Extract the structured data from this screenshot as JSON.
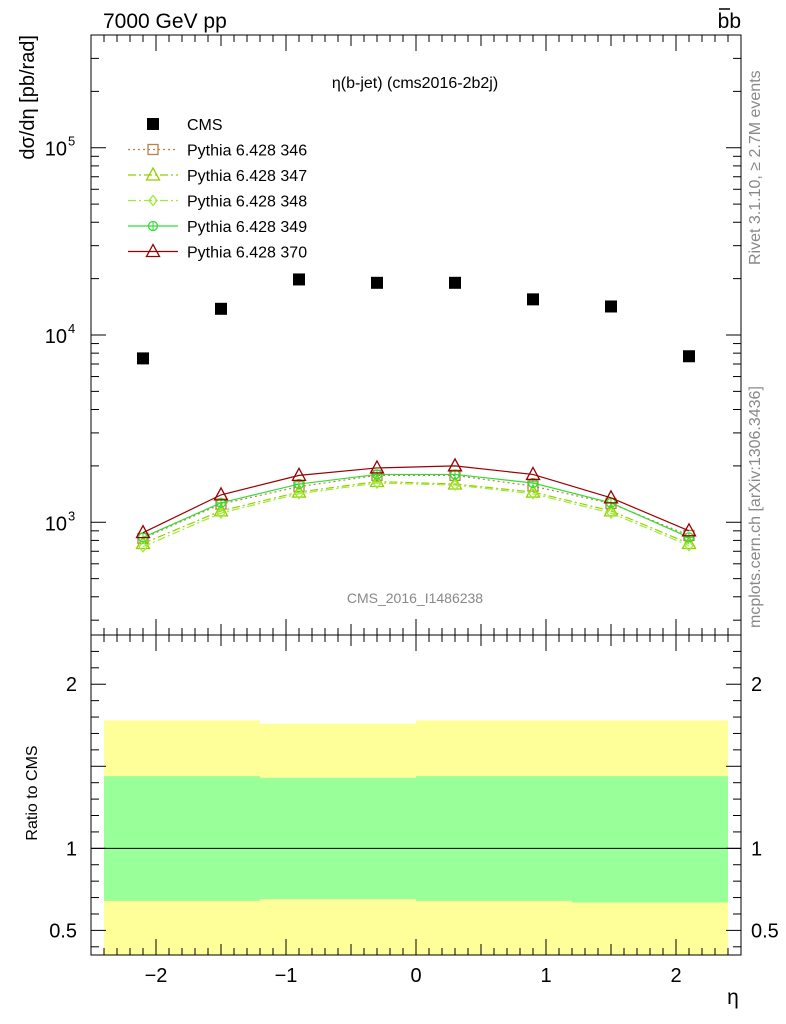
{
  "header": {
    "left": "7000 GeV pp",
    "right": "bb"
  },
  "side": {
    "rivet": "Rivet 3.1.10, ≥ 2.7M events",
    "mcplots": "mcplots.cern.ch [arXiv:1306.3436]"
  },
  "chart_data": [
    {
      "type": "scatter",
      "title": "η(b-jet) (cms2016-2b2j)",
      "watermark": "CMS_2016_I1486238",
      "ylabel": "dσ/dη [pb/rad]",
      "xlabel": "η",
      "yscale": "log",
      "xlim": [
        -2.5,
        2.5
      ],
      "ylim": [
        250,
        400000
      ],
      "ytick_labels": [
        "10^3",
        "10^4",
        "10^5"
      ],
      "legend_position": "top-left",
      "x": [
        -2.1,
        -1.5,
        -0.9,
        -0.3,
        0.3,
        0.9,
        1.5,
        2.1
      ],
      "series": [
        {
          "name": "CMS",
          "color": "#000000",
          "marker": "square",
          "values": [
            7500,
            13800,
            19800,
            19000,
            19000,
            15500,
            14200,
            7700
          ]
        },
        {
          "name": "Pythia 6.428 346",
          "color": "#b5834a",
          "marker": "open-square",
          "line": "dotted",
          "values": [
            820,
            1250,
            1550,
            1780,
            1780,
            1560,
            1260,
            850
          ]
        },
        {
          "name": "Pythia 6.428 347",
          "color": "#99cc00",
          "marker": "open-triangle",
          "line": "dashdot",
          "values": [
            770,
            1150,
            1450,
            1650,
            1600,
            1450,
            1150,
            770
          ]
        },
        {
          "name": "Pythia 6.428 348",
          "color": "#99ee33",
          "marker": "open-diamond",
          "line": "dashdot",
          "values": [
            740,
            1120,
            1420,
            1620,
            1580,
            1420,
            1120,
            750
          ]
        },
        {
          "name": "Pythia 6.428 349",
          "color": "#33dd33",
          "marker": "open-circle-cross",
          "line": "solid",
          "values": [
            830,
            1270,
            1600,
            1800,
            1800,
            1620,
            1270,
            830
          ]
        },
        {
          "name": "Pythia 6.428 370",
          "color": "#990000",
          "marker": "open-triangle",
          "line": "solid",
          "values": [
            880,
            1400,
            1780,
            1950,
            2000,
            1800,
            1350,
            900
          ]
        }
      ]
    },
    {
      "type": "area",
      "ylabel": "Ratio to CMS",
      "xlabel": "η",
      "xlim": [
        -2.5,
        2.5
      ],
      "ylim": [
        0.35,
        2.3
      ],
      "xtick_labels": [
        "−2",
        "−1",
        "0",
        "1",
        "2"
      ],
      "ytick_labels": [
        "0.5",
        "1",
        "2"
      ],
      "bins": [
        [
          -2.4,
          -1.2
        ],
        [
          -1.2,
          0.0
        ],
        [
          0.0,
          1.2
        ],
        [
          1.2,
          2.4
        ]
      ],
      "inner_band": {
        "color": "#99ff99",
        "low": [
          0.68,
          0.69,
          0.68,
          0.67
        ],
        "high": [
          1.44,
          1.43,
          1.44,
          1.44
        ]
      },
      "outer_band": {
        "color": "#ffff99",
        "low": [
          0.35,
          0.35,
          0.35,
          0.35
        ],
        "high": [
          1.78,
          1.76,
          1.78,
          1.78
        ]
      },
      "reference": 1
    }
  ]
}
